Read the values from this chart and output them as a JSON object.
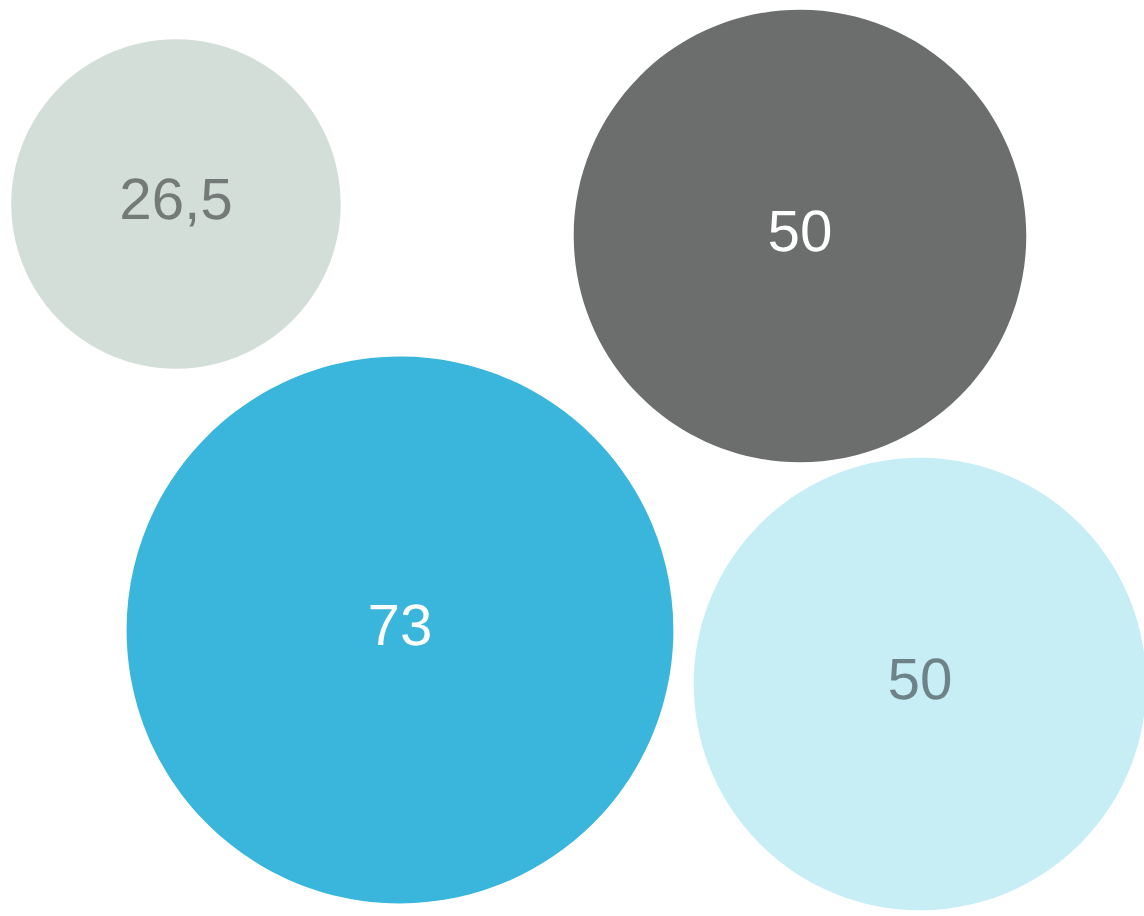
{
  "chart_data": {
    "type": "other",
    "categories": [
      null,
      null,
      null,
      null
    ],
    "values": [
      26.5,
      50,
      73,
      50
    ],
    "colors": [
      "#d3ded9",
      "#6b6e6c",
      "#3ab5dc",
      "#c8eef5"
    ],
    "value_labels": [
      "26,5",
      "50",
      "73",
      "50"
    ]
  }
}
